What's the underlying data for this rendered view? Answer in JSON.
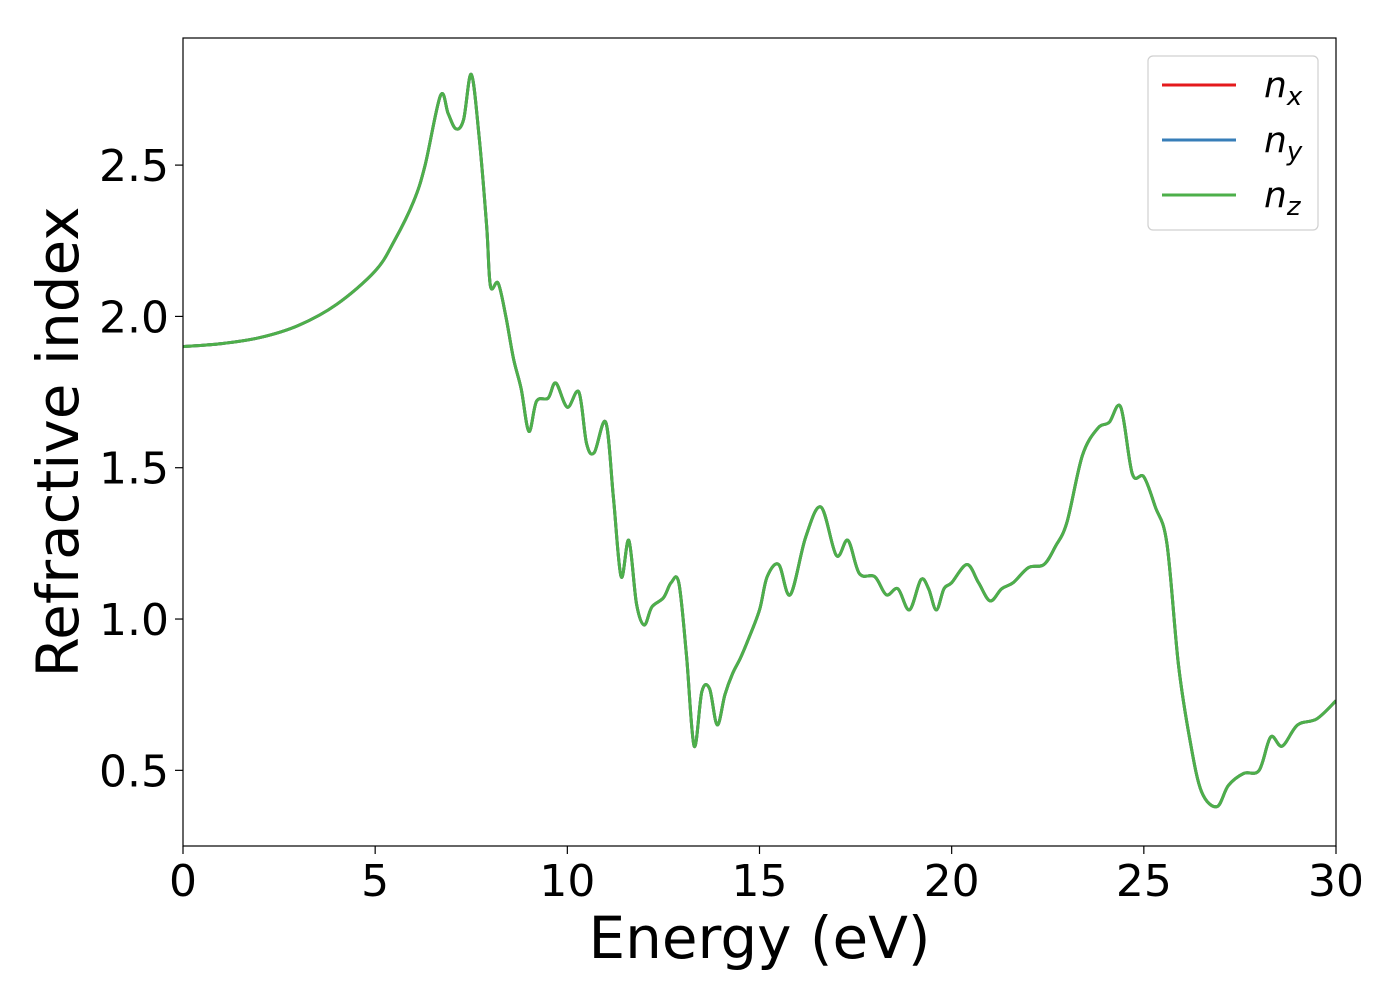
{
  "chart_data": {
    "type": "line",
    "title": "",
    "xlabel": "Energy (eV)",
    "ylabel": "Refractive index",
    "xlim": [
      0,
      30
    ],
    "ylim": [
      0.25,
      2.92
    ],
    "xticks": [
      0,
      5,
      10,
      15,
      20,
      25,
      30
    ],
    "yticks": [
      0.5,
      1.0,
      1.5,
      2.0,
      2.5
    ],
    "xtick_labels": [
      "0",
      "5",
      "10",
      "15",
      "20",
      "25",
      "30"
    ],
    "ytick_labels": [
      "0.5",
      "1.0",
      "1.5",
      "2.0",
      "2.5"
    ],
    "grid": false,
    "legend_position": "top-right",
    "x": [
      0,
      1,
      2,
      3,
      4,
      5,
      5.5,
      6,
      6.3,
      6.7,
      6.9,
      7.1,
      7.3,
      7.5,
      7.7,
      7.9,
      8.0,
      8.2,
      8.4,
      8.6,
      8.8,
      9.0,
      9.2,
      9.5,
      9.7,
      10.0,
      10.3,
      10.5,
      10.7,
      11.0,
      11.2,
      11.4,
      11.6,
      11.8,
      12.0,
      12.2,
      12.5,
      12.7,
      12.9,
      13.1,
      13.3,
      13.5,
      13.7,
      13.9,
      14.1,
      14.3,
      14.5,
      14.7,
      15.0,
      15.2,
      15.5,
      15.8,
      16.2,
      16.6,
      17.0,
      17.3,
      17.6,
      18.0,
      18.3,
      18.6,
      18.9,
      19.2,
      19.4,
      19.6,
      19.8,
      20.0,
      20.4,
      20.7,
      21.0,
      21.3,
      21.6,
      22.0,
      22.4,
      22.7,
      23.0,
      23.4,
      23.8,
      24.1,
      24.4,
      24.7,
      25.0,
      25.3,
      25.6,
      25.9,
      26.2,
      26.5,
      26.9,
      27.2,
      27.6,
      28.0,
      28.3,
      28.6,
      29.0,
      29.5,
      30.0
    ],
    "series": [
      {
        "name": "n_x",
        "label_main": "n",
        "label_sub": "x",
        "color": "#e41a1c",
        "values": [
          1.9,
          1.91,
          1.93,
          1.97,
          2.04,
          2.15,
          2.25,
          2.38,
          2.5,
          2.73,
          2.67,
          2.62,
          2.65,
          2.8,
          2.6,
          2.3,
          2.1,
          2.11,
          2.0,
          1.86,
          1.76,
          1.62,
          1.72,
          1.73,
          1.78,
          1.7,
          1.75,
          1.58,
          1.55,
          1.65,
          1.4,
          1.14,
          1.26,
          1.05,
          0.98,
          1.04,
          1.07,
          1.12,
          1.12,
          0.88,
          0.58,
          0.76,
          0.77,
          0.65,
          0.75,
          0.82,
          0.87,
          0.93,
          1.03,
          1.14,
          1.18,
          1.08,
          1.27,
          1.37,
          1.21,
          1.26,
          1.15,
          1.14,
          1.08,
          1.1,
          1.03,
          1.13,
          1.1,
          1.03,
          1.1,
          1.12,
          1.18,
          1.12,
          1.06,
          1.1,
          1.12,
          1.17,
          1.18,
          1.24,
          1.32,
          1.54,
          1.63,
          1.65,
          1.7,
          1.48,
          1.47,
          1.37,
          1.25,
          0.85,
          0.6,
          0.43,
          0.38,
          0.45,
          0.49,
          0.5,
          0.61,
          0.58,
          0.65,
          0.67,
          0.73
        ]
      },
      {
        "name": "n_y",
        "label_main": "n",
        "label_sub": "y",
        "color": "#377eb8",
        "values": [
          1.9,
          1.91,
          1.93,
          1.97,
          2.04,
          2.15,
          2.25,
          2.38,
          2.5,
          2.73,
          2.67,
          2.62,
          2.65,
          2.8,
          2.6,
          2.3,
          2.1,
          2.11,
          2.0,
          1.86,
          1.76,
          1.62,
          1.72,
          1.73,
          1.78,
          1.7,
          1.75,
          1.58,
          1.55,
          1.65,
          1.4,
          1.14,
          1.26,
          1.05,
          0.98,
          1.04,
          1.07,
          1.12,
          1.12,
          0.88,
          0.58,
          0.76,
          0.77,
          0.65,
          0.75,
          0.82,
          0.87,
          0.93,
          1.03,
          1.14,
          1.18,
          1.08,
          1.27,
          1.37,
          1.21,
          1.26,
          1.15,
          1.14,
          1.08,
          1.1,
          1.03,
          1.13,
          1.1,
          1.03,
          1.1,
          1.12,
          1.18,
          1.12,
          1.06,
          1.1,
          1.12,
          1.17,
          1.18,
          1.24,
          1.32,
          1.54,
          1.63,
          1.65,
          1.7,
          1.48,
          1.47,
          1.37,
          1.25,
          0.85,
          0.6,
          0.43,
          0.38,
          0.45,
          0.49,
          0.5,
          0.61,
          0.58,
          0.65,
          0.67,
          0.73
        ]
      },
      {
        "name": "n_z",
        "label_main": "n",
        "label_sub": "z",
        "color": "#4daf4a",
        "values": [
          1.9,
          1.91,
          1.93,
          1.97,
          2.04,
          2.15,
          2.25,
          2.38,
          2.5,
          2.73,
          2.67,
          2.62,
          2.65,
          2.8,
          2.6,
          2.3,
          2.1,
          2.11,
          2.0,
          1.86,
          1.76,
          1.62,
          1.72,
          1.73,
          1.78,
          1.7,
          1.75,
          1.58,
          1.55,
          1.65,
          1.4,
          1.14,
          1.26,
          1.05,
          0.98,
          1.04,
          1.07,
          1.12,
          1.12,
          0.88,
          0.58,
          0.76,
          0.77,
          0.65,
          0.75,
          0.82,
          0.87,
          0.93,
          1.03,
          1.14,
          1.18,
          1.08,
          1.27,
          1.37,
          1.21,
          1.26,
          1.15,
          1.14,
          1.08,
          1.1,
          1.03,
          1.13,
          1.1,
          1.03,
          1.1,
          1.12,
          1.18,
          1.12,
          1.06,
          1.1,
          1.12,
          1.17,
          1.18,
          1.24,
          1.32,
          1.54,
          1.63,
          1.65,
          1.7,
          1.48,
          1.47,
          1.37,
          1.25,
          0.85,
          0.6,
          0.43,
          0.38,
          0.45,
          0.49,
          0.5,
          0.61,
          0.58,
          0.65,
          0.67,
          0.73
        ]
      }
    ]
  }
}
